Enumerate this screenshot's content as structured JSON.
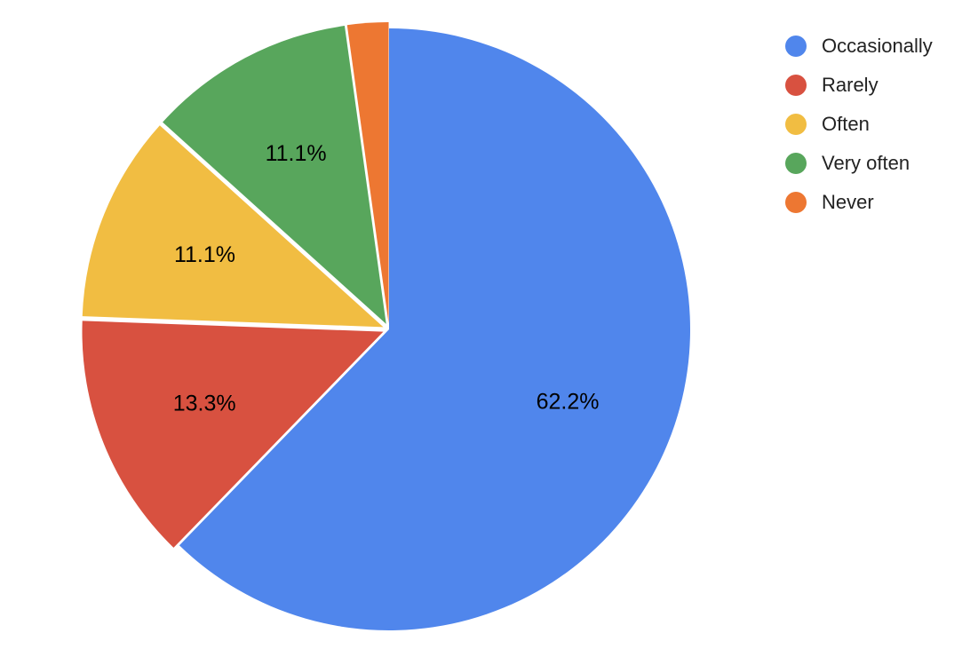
{
  "chart_data": {
    "type": "pie",
    "labels": [
      "Occasionally",
      "Rarely",
      "Often",
      "Very often",
      "Never"
    ],
    "values": [
      62.2,
      13.3,
      11.1,
      11.1,
      2.2
    ],
    "data_labels": [
      "62.2%",
      "13.3%",
      "11.1%",
      "11.1%",
      ""
    ],
    "colors": [
      "#5086EC",
      "#D85140",
      "#F1BD42",
      "#58A65C",
      "#ED7732"
    ],
    "exploded": [
      "Rarely",
      "Often",
      "Very often",
      "Never"
    ],
    "start_angle": "12 o'clock, clockwise",
    "legend": "top-right"
  }
}
